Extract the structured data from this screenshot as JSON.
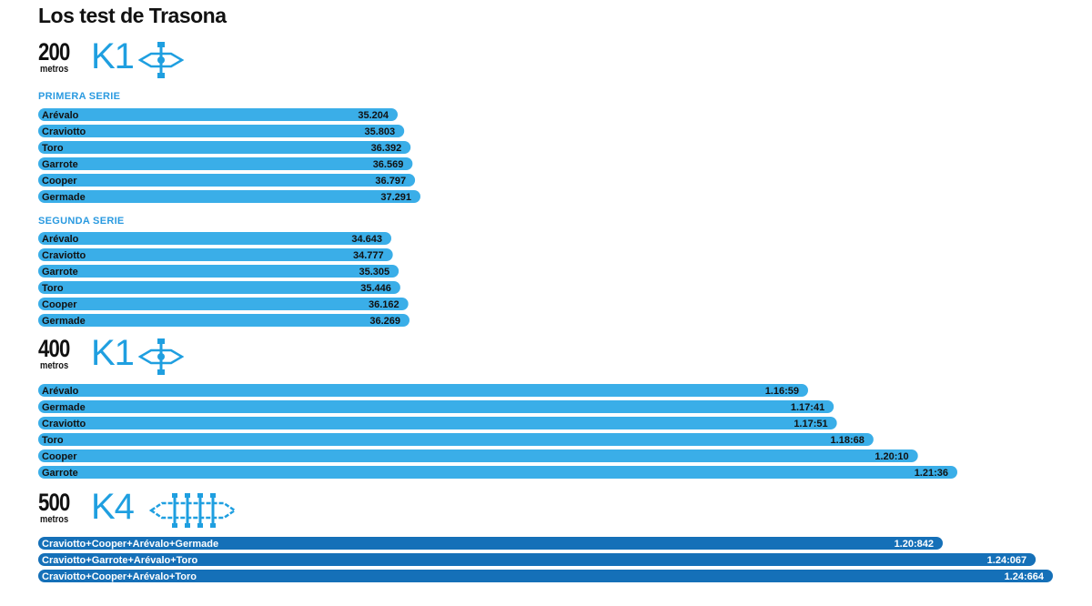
{
  "title": "Los test de Trasona",
  "colors": {
    "light_bar": "#3aaee8",
    "dark_bar": "#1570b8",
    "accent": "#1f9fe0"
  },
  "icons": [
    "kayak-k1-icon",
    "kayak-k1-icon",
    "kayak-k4-icon"
  ],
  "sections": [
    {
      "distance": "200",
      "unit": "metros",
      "boat": "K1"
    },
    {
      "distance": "400",
      "unit": "metros",
      "boat": "K1"
    },
    {
      "distance": "500",
      "unit": "metros",
      "boat": "K4"
    }
  ],
  "series_labels": {
    "first": "PRIMERA SERIE",
    "second": "SEGUNDA SERIE"
  },
  "chart_data": [
    {
      "type": "bar",
      "orientation": "horizontal",
      "title": "200 metros K1",
      "series": [
        {
          "name": "PRIMERA SERIE",
          "categories": [
            "Arévalo",
            "Craviotto",
            "Toro",
            "Garrote",
            "Cooper",
            "Germade"
          ],
          "labels": [
            "35.204",
            "35.803",
            "36.392",
            "36.569",
            "36.797",
            "37.291"
          ],
          "values": [
            35.204,
            35.803,
            36.392,
            36.569,
            36.797,
            37.291
          ]
        },
        {
          "name": "SEGUNDA SERIE",
          "categories": [
            "Arévalo",
            "Craviotto",
            "Garrote",
            "Toro",
            "Cooper",
            "Germade"
          ],
          "labels": [
            "34.643",
            "34.777",
            "35.305",
            "35.446",
            "36.162",
            "36.269"
          ],
          "values": [
            34.643,
            34.777,
            35.305,
            35.446,
            36.162,
            36.269
          ]
        }
      ]
    },
    {
      "type": "bar",
      "orientation": "horizontal",
      "title": "400 metros K1",
      "categories": [
        "Arévalo",
        "Germade",
        "Craviotto",
        "Toro",
        "Cooper",
        "Garrote"
      ],
      "labels": [
        "1.16:59",
        "1.17:41",
        "1.17:51",
        "1.18:68",
        "1.20:10",
        "1.21:36"
      ],
      "values": [
        76.59,
        77.41,
        77.51,
        78.68,
        80.1,
        81.36
      ]
    },
    {
      "type": "bar",
      "orientation": "horizontal",
      "title": "500 metros K4",
      "categories": [
        "Craviotto+Cooper+Arévalo+Germade",
        "Craviotto+Garrote+Arévalo+Toro",
        "Craviotto+Cooper+Arévalo+Toro"
      ],
      "labels": [
        "1.20:842",
        "1.24:067",
        "1.24:664"
      ],
      "values": [
        80.842,
        84.067,
        84.664
      ]
    }
  ]
}
